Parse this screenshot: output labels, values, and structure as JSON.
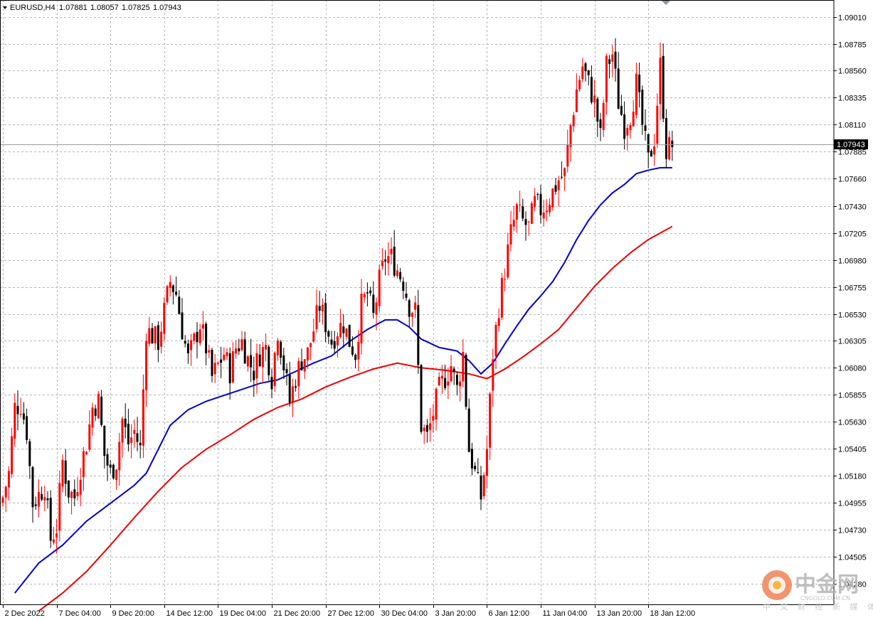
{
  "header": {
    "symbol": "EURUSD,H4",
    "open": "1.07881",
    "high": "1.08057",
    "low": "1.07825",
    "close": "1.07943"
  },
  "current_price": "1.07943",
  "watermark": {
    "name": "中金网",
    "domain": "CNGOLD.COM.CN",
    "tagline": "中 文 财 经 新 媒 体"
  },
  "colors": {
    "bull": "#ff0000",
    "bear": "#000000",
    "ma_fast": "#0000cc",
    "ma_slow": "#ee0000",
    "grid": "#b4b4b4"
  },
  "chart_data": {
    "type": "candlestick",
    "instrument": "EURUSD",
    "timeframe": "H4",
    "grid": true,
    "ylim": [
      1.041,
      1.0915
    ],
    "y_ticks": [
      "1.09010",
      "1.08785",
      "1.08560",
      "1.08335",
      "1.08110",
      "1.07885",
      "1.07660",
      "1.07430",
      "1.07205",
      "1.06980",
      "1.06755",
      "1.06530",
      "1.06305",
      "1.06080",
      "1.05855",
      "1.05630",
      "1.05405",
      "1.05180",
      "1.04955",
      "1.04730",
      "1.04505",
      "1.04280"
    ],
    "x_ticks": [
      {
        "label": "2 Dec 2022",
        "bar": 0
      },
      {
        "label": "7 Dec 04:00",
        "bar": 18
      },
      {
        "label": "9 Dec 20:00",
        "bar": 36
      },
      {
        "label": "14 Dec 12:00",
        "bar": 54
      },
      {
        "label": "19 Dec 04:00",
        "bar": 72
      },
      {
        "label": "21 Dec 20:00",
        "bar": 90
      },
      {
        "label": "27 Dec 12:00",
        "bar": 108
      },
      {
        "label": "30 Dec 04:00",
        "bar": 126
      },
      {
        "label": "3 Jan 20:00",
        "bar": 144
      },
      {
        "label": "6 Jan 12:00",
        "bar": 162
      },
      {
        "label": "11 Jan 04:00",
        "bar": 180
      },
      {
        "label": "13 Jan 20:00",
        "bar": 198
      },
      {
        "label": "18 Jan 12:00",
        "bar": 216
      }
    ],
    "close_path": [
      [
        0,
        1.05
      ],
      [
        2,
        1.052
      ],
      [
        4,
        1.0575
      ],
      [
        6,
        1.0578
      ],
      [
        8,
        1.0555
      ],
      [
        10,
        1.0495
      ],
      [
        12,
        1.0502
      ],
      [
        14,
        1.051
      ],
      [
        16,
        1.0465
      ],
      [
        18,
        1.0475
      ],
      [
        20,
        1.053
      ],
      [
        22,
        1.0505
      ],
      [
        24,
        1.05
      ],
      [
        26,
        1.0525
      ],
      [
        28,
        1.0545
      ],
      [
        30,
        1.0575
      ],
      [
        32,
        1.058
      ],
      [
        34,
        1.0535
      ],
      [
        36,
        1.052
      ],
      [
        38,
        1.053
      ],
      [
        40,
        1.0565
      ],
      [
        42,
        1.0545
      ],
      [
        44,
        1.0555
      ],
      [
        46,
        1.054
      ],
      [
        48,
        1.064
      ],
      [
        50,
        1.0635
      ],
      [
        52,
        1.063
      ],
      [
        54,
        1.0655
      ],
      [
        56,
        1.068
      ],
      [
        58,
        1.067
      ],
      [
        60,
        1.064
      ],
      [
        62,
        1.0615
      ],
      [
        64,
        1.063
      ],
      [
        66,
        1.0645
      ],
      [
        68,
        1.0625
      ],
      [
        70,
        1.06
      ],
      [
        72,
        1.061
      ],
      [
        74,
        1.062
      ],
      [
        76,
        1.0605
      ],
      [
        78,
        1.0625
      ],
      [
        80,
        1.063
      ],
      [
        82,
        1.0615
      ],
      [
        84,
        1.0605
      ],
      [
        86,
        1.062
      ],
      [
        88,
        1.0625
      ],
      [
        90,
        1.06
      ],
      [
        92,
        1.064
      ],
      [
        94,
        1.061
      ],
      [
        96,
        1.058
      ],
      [
        98,
        1.06
      ],
      [
        100,
        1.0615
      ],
      [
        102,
        1.062
      ],
      [
        104,
        1.064
      ],
      [
        106,
        1.066
      ],
      [
        108,
        1.0645
      ],
      [
        110,
        1.063
      ],
      [
        112,
        1.064
      ],
      [
        114,
        1.0645
      ],
      [
        116,
        1.063
      ],
      [
        118,
        1.062
      ],
      [
        120,
        1.066
      ],
      [
        122,
        1.067
      ],
      [
        124,
        1.065
      ],
      [
        126,
        1.068
      ],
      [
        128,
        1.07
      ],
      [
        130,
        1.07
      ],
      [
        132,
        1.069
      ],
      [
        134,
        1.068
      ],
      [
        136,
        1.066
      ],
      [
        138,
        1.0655
      ],
      [
        140,
        1.056
      ],
      [
        142,
        1.055
      ],
      [
        144,
        1.057
      ],
      [
        146,
        1.059
      ],
      [
        148,
        1.06
      ],
      [
        150,
        1.061
      ],
      [
        152,
        1.059
      ],
      [
        154,
        1.062
      ],
      [
        156,
        1.054
      ],
      [
        158,
        1.052
      ],
      [
        160,
        1.05
      ],
      [
        162,
        1.054
      ],
      [
        164,
        1.062
      ],
      [
        166,
        1.066
      ],
      [
        168,
        1.069
      ],
      [
        170,
        1.072
      ],
      [
        172,
        1.074
      ],
      [
        174,
        1.073
      ],
      [
        176,
        1.0725
      ],
      [
        178,
        1.0745
      ],
      [
        180,
        1.074
      ],
      [
        182,
        1.0745
      ],
      [
        184,
        1.0755
      ],
      [
        186,
        1.0765
      ],
      [
        188,
        1.077
      ],
      [
        190,
        1.081
      ],
      [
        192,
        1.084
      ],
      [
        194,
        1.086
      ],
      [
        196,
        1.0845
      ],
      [
        198,
        1.083
      ],
      [
        200,
        1.08
      ],
      [
        202,
        1.086
      ],
      [
        204,
        1.087
      ],
      [
        206,
        1.083
      ],
      [
        208,
        1.081
      ],
      [
        210,
        1.082
      ],
      [
        212,
        1.0845
      ],
      [
        214,
        1.081
      ],
      [
        216,
        1.078
      ],
      [
        218,
        1.08
      ],
      [
        220,
        1.086
      ],
      [
        222,
        1.079
      ],
      [
        224,
        1.0794
      ]
    ],
    "bars": 225,
    "series": [
      {
        "name": "MA fast",
        "color": "#0000cc",
        "points": [
          [
            4,
            1.042
          ],
          [
            12,
            1.0445
          ],
          [
            20,
            1.046
          ],
          [
            28,
            1.048
          ],
          [
            36,
            1.0495
          ],
          [
            44,
            1.051
          ],
          [
            48,
            1.052
          ],
          [
            52,
            1.054
          ],
          [
            56,
            1.056
          ],
          [
            62,
            1.0573
          ],
          [
            68,
            1.058
          ],
          [
            74,
            1.0585
          ],
          [
            80,
            1.059
          ],
          [
            86,
            1.0595
          ],
          [
            92,
            1.0598
          ],
          [
            98,
            1.0605
          ],
          [
            104,
            1.0612
          ],
          [
            110,
            1.0618
          ],
          [
            116,
            1.063
          ],
          [
            122,
            1.064
          ],
          [
            128,
            1.0648
          ],
          [
            132,
            1.0648
          ],
          [
            136,
            1.0642
          ],
          [
            140,
            1.0632
          ],
          [
            146,
            1.0625
          ],
          [
            152,
            1.0622
          ],
          [
            156,
            1.0614
          ],
          [
            160,
            1.0603
          ],
          [
            164,
            1.0612
          ],
          [
            168,
            1.0628
          ],
          [
            172,
            1.0643
          ],
          [
            176,
            1.0657
          ],
          [
            180,
            1.0668
          ],
          [
            184,
            1.068
          ],
          [
            188,
            1.0696
          ],
          [
            192,
            1.0715
          ],
          [
            196,
            1.0731
          ],
          [
            200,
            1.0744
          ],
          [
            204,
            1.0754
          ],
          [
            208,
            1.0761
          ],
          [
            212,
            1.077
          ],
          [
            216,
            1.0773
          ],
          [
            220,
            1.0775
          ],
          [
            224,
            1.0775
          ]
        ]
      },
      {
        "name": "MA slow",
        "color": "#ee0000",
        "points": [
          [
            12,
            1.0405
          ],
          [
            20,
            1.042
          ],
          [
            28,
            1.0438
          ],
          [
            36,
            1.046
          ],
          [
            44,
            1.0483
          ],
          [
            52,
            1.0505
          ],
          [
            60,
            1.0525
          ],
          [
            68,
            1.054
          ],
          [
            76,
            1.0552
          ],
          [
            84,
            1.0565
          ],
          [
            92,
            1.0575
          ],
          [
            100,
            1.0582
          ],
          [
            108,
            1.0592
          ],
          [
            116,
            1.06
          ],
          [
            124,
            1.0607
          ],
          [
            132,
            1.0612
          ],
          [
            140,
            1.0608
          ],
          [
            148,
            1.0606
          ],
          [
            156,
            1.0603
          ],
          [
            162,
            1.0599
          ],
          [
            168,
            1.0607
          ],
          [
            174,
            1.0617
          ],
          [
            180,
            1.0628
          ],
          [
            186,
            1.064
          ],
          [
            192,
            1.0658
          ],
          [
            198,
            1.0676
          ],
          [
            204,
            1.0691
          ],
          [
            210,
            1.0704
          ],
          [
            216,
            1.0715
          ],
          [
            224,
            1.0726
          ]
        ]
      }
    ]
  }
}
